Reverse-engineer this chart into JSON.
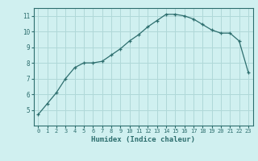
{
  "x": [
    0,
    1,
    2,
    3,
    4,
    5,
    6,
    7,
    8,
    9,
    10,
    11,
    12,
    13,
    14,
    15,
    16,
    17,
    18,
    19,
    20,
    21,
    22,
    23
  ],
  "y": [
    4.7,
    5.4,
    6.1,
    7.0,
    7.7,
    8.0,
    8.0,
    8.1,
    8.5,
    8.9,
    9.4,
    9.8,
    10.3,
    10.7,
    11.1,
    11.1,
    11.0,
    10.8,
    10.45,
    10.1,
    9.9,
    9.9,
    9.4,
    7.4
  ],
  "xlabel": "Humidex (Indice chaleur)",
  "xlim": [
    -0.5,
    23.5
  ],
  "ylim": [
    4.0,
    11.5
  ],
  "yticks": [
    5,
    6,
    7,
    8,
    9,
    10,
    11
  ],
  "xticks": [
    0,
    1,
    2,
    3,
    4,
    5,
    6,
    7,
    8,
    9,
    10,
    11,
    12,
    13,
    14,
    15,
    16,
    17,
    18,
    19,
    20,
    21,
    22,
    23
  ],
  "line_color": "#2d6e6e",
  "marker": "+",
  "bg_color": "#d0f0f0",
  "grid_color": "#b0d8d8",
  "tick_color": "#2d6e6e",
  "label_color": "#2d6e6e",
  "fig_width": 3.2,
  "fig_height": 2.0,
  "dpi": 100
}
